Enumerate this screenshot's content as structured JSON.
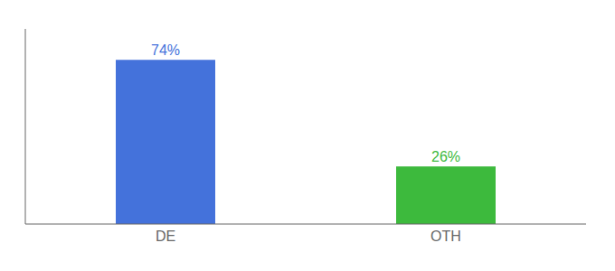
{
  "chart_data": {
    "type": "bar",
    "categories": [
      "DE",
      "OTH"
    ],
    "values": [
      74,
      26
    ],
    "value_labels": [
      "74%",
      "26%"
    ],
    "data_labels": true,
    "colors": [
      "#4472db",
      "#3dba3d"
    ],
    "ylim": [
      0,
      88
    ],
    "tick_labels": "x"
  }
}
